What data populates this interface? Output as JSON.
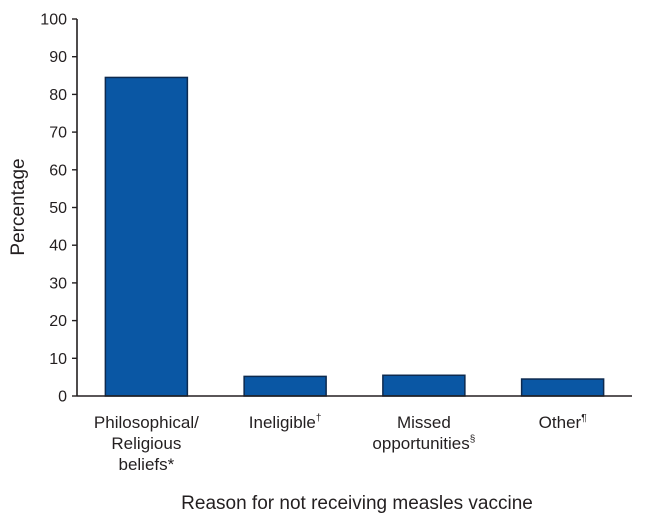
{
  "chart_data": {
    "type": "bar",
    "categories": [
      [
        "Philosophical/",
        "Religious",
        "beliefs*"
      ],
      [
        "Ineligible†"
      ],
      [
        "Missed",
        "opportunities§"
      ],
      [
        "Other¶"
      ]
    ],
    "values": [
      84.5,
      5.2,
      5.5,
      4.5
    ],
    "xlabel": "Reason for not receiving measles vaccine",
    "ylabel": "Percentage",
    "ylim": [
      0,
      100
    ],
    "yticks": [
      0,
      10,
      20,
      30,
      40,
      50,
      60,
      70,
      80,
      90,
      100
    ],
    "grid": false,
    "bar_color": "#0a57a4",
    "bar_outline_color": "#0d2a4f",
    "axis_color": "#231f20"
  }
}
